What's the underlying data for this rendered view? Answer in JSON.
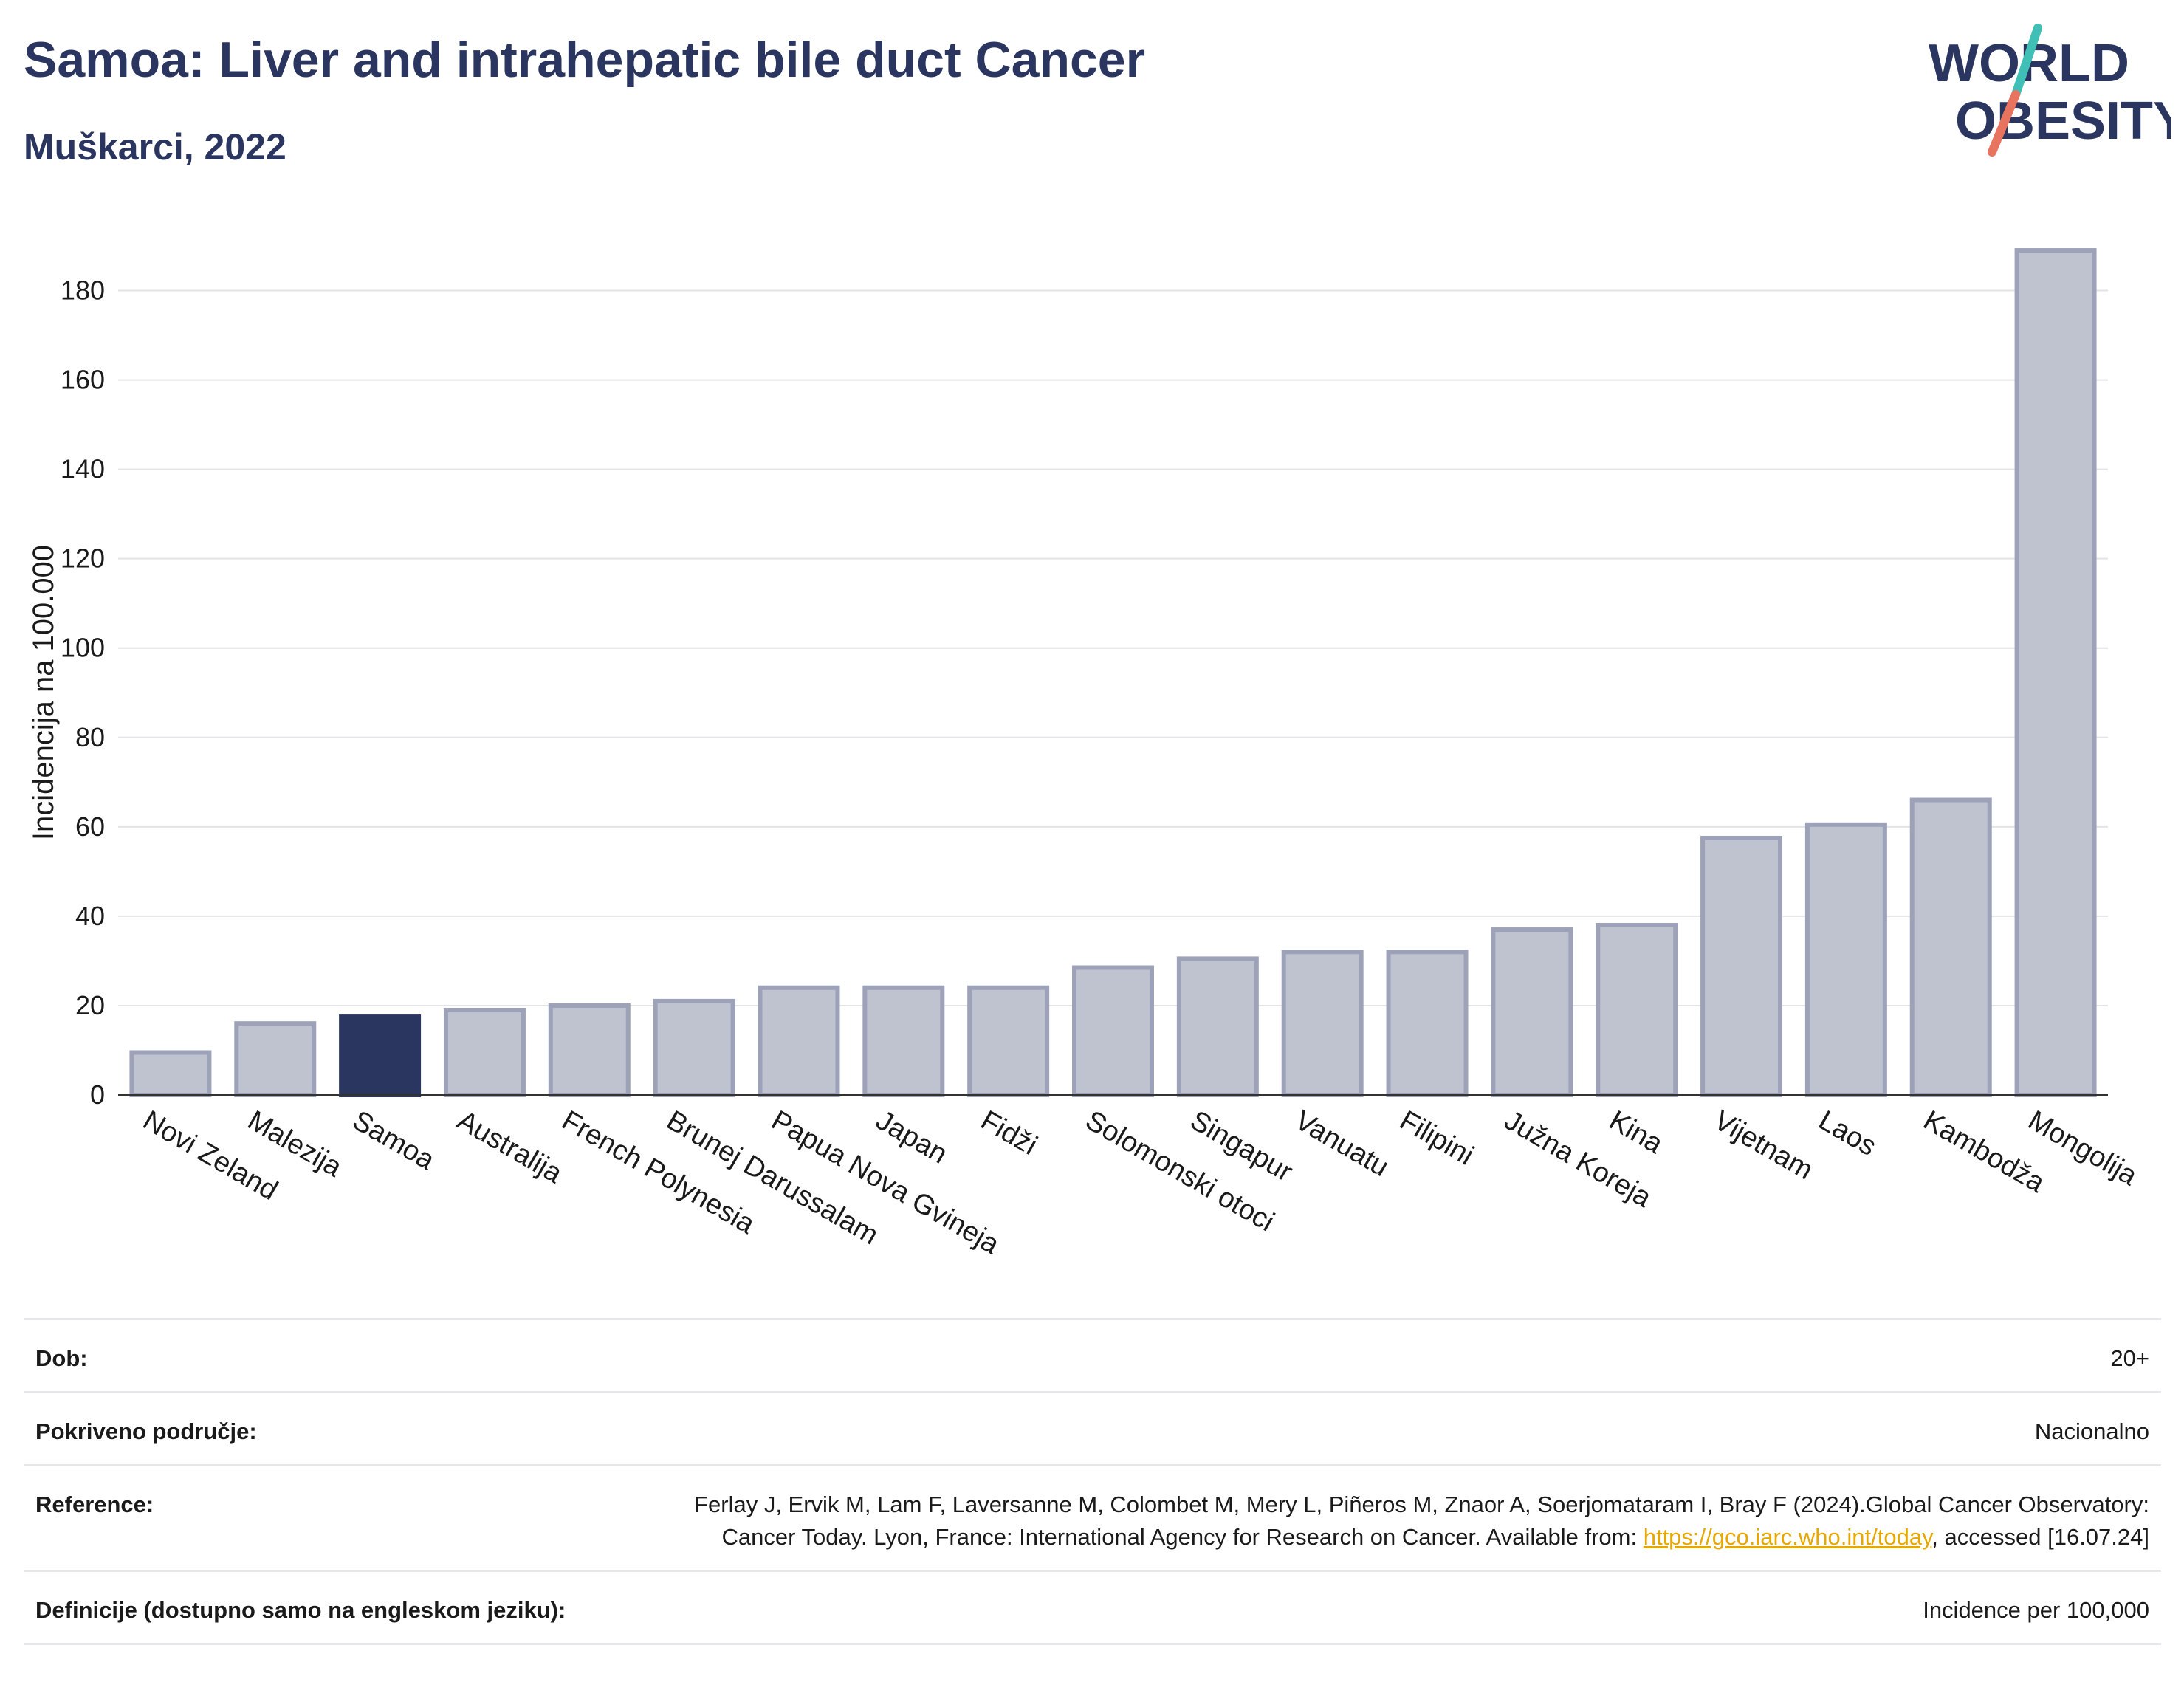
{
  "header": {
    "title": "Samoa: Liver and intrahepatic bile duct Cancer",
    "subtitle": "Muškarci, 2022"
  },
  "logo": {
    "line1": "WORLD",
    "line2": "OBESITY",
    "colors": {
      "text": "#2a3560",
      "slash_teal": "#3fbfb5",
      "slash_coral": "#e8735f"
    }
  },
  "chart_data": {
    "type": "bar",
    "ylabel": "Incidencija na 100.000",
    "xlabel": "",
    "ylim": [
      0,
      190
    ],
    "yticks": [
      0,
      20,
      40,
      60,
      80,
      100,
      120,
      140,
      160,
      180
    ],
    "grid": true,
    "categories": [
      "Novi Zeland",
      "Malezija",
      "Samoa",
      "Australija",
      "French Polynesia",
      "Brunej Darussalam",
      "Papua Nova Gvineja",
      "Japan",
      "Fidži",
      "Solomonski otoci",
      "Singapur",
      "Vanuatu",
      "Filipini",
      "Južna Koreja",
      "Kina",
      "Vijetnam",
      "Laos",
      "Kambodža",
      "Mongolija"
    ],
    "values": [
      9.5,
      16,
      17.5,
      19,
      20,
      21,
      24,
      24,
      24,
      28.5,
      30.5,
      32,
      32,
      37,
      38,
      57.5,
      60.5,
      66,
      189
    ],
    "highlight": "Samoa",
    "colors": {
      "bar": "#bfc2cf",
      "bar_edge": "#9da2b8",
      "highlight": "#2a3560"
    }
  },
  "info": [
    {
      "label": "Dob:",
      "value": "20+"
    },
    {
      "label": "Pokriveno područje:",
      "value": "Nacionalno"
    },
    {
      "label": "Reference:",
      "value_before": "Ferlay J, Ervik M, Lam F, Laversanne M, Colombet M, Mery L, Piñeros M, Znaor A, Soerjomataram I, Bray F (2024).Global Cancer Observatory: Cancer Today. Lyon, France: International Agency for Research on Cancer. Available from: ",
      "link": "https://gco.iarc.who.int/today",
      "value_after": ", accessed [16.07.24]"
    },
    {
      "label": "Definicije (dostupno samo na engleskom jeziku):",
      "value": "Incidence per 100,000"
    }
  ]
}
